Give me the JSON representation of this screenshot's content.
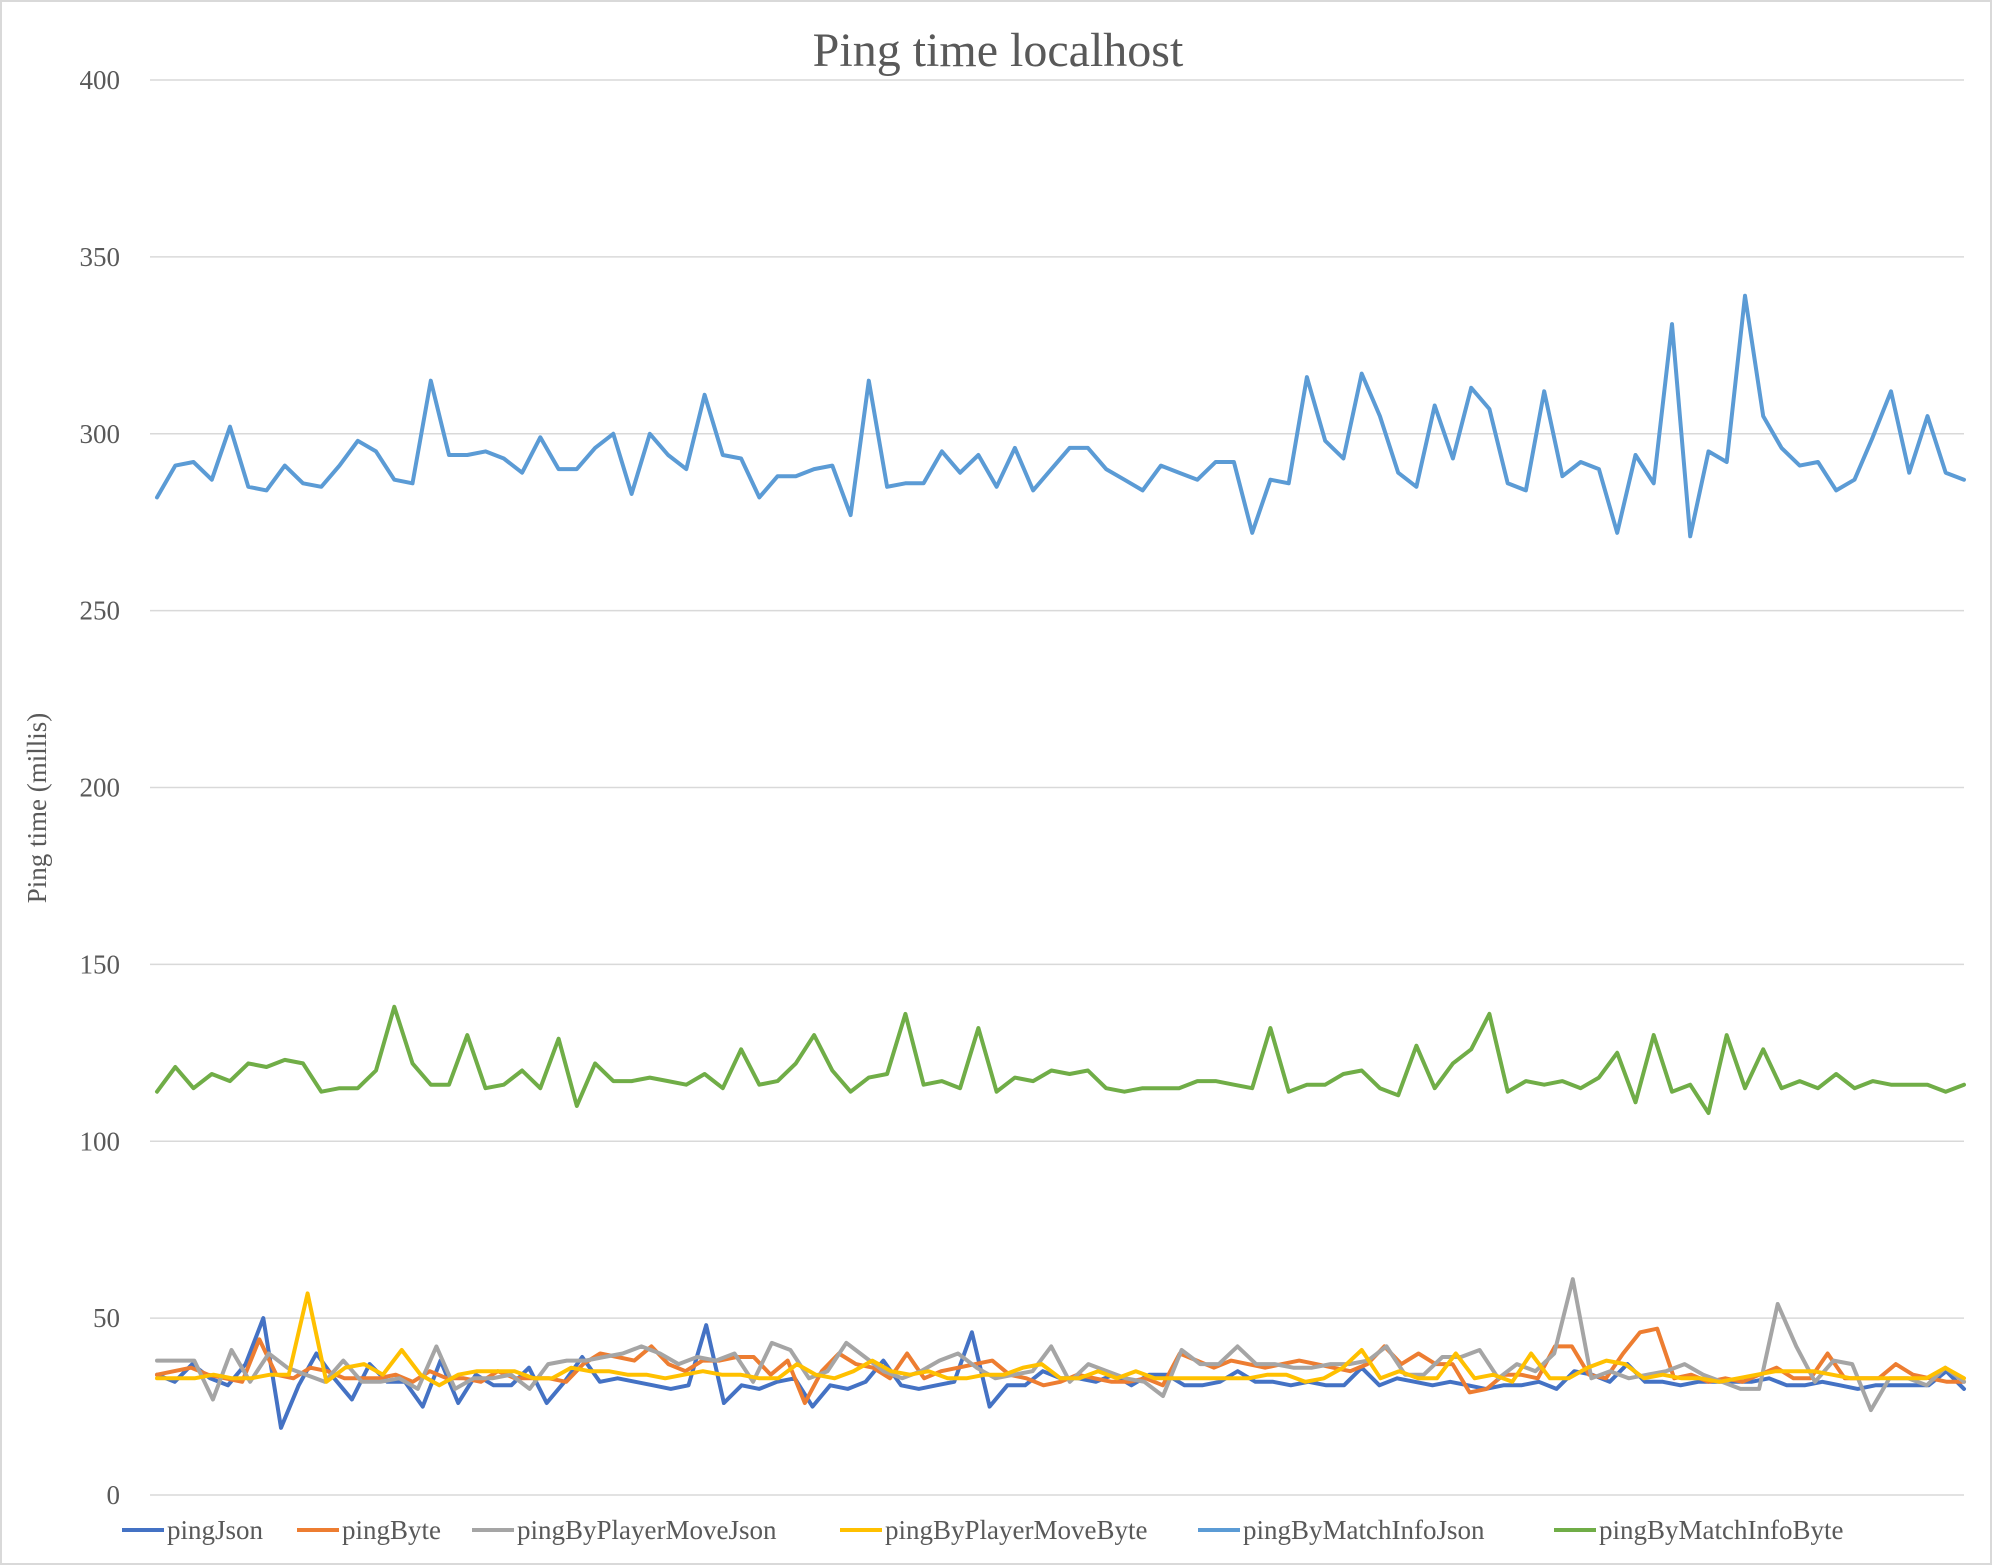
{
  "chart_data": {
    "type": "line",
    "title": "Ping time localhost",
    "xlabel": "",
    "ylabel": "Ping time (millis)",
    "ylim": [
      0,
      400
    ],
    "yticks": [
      0,
      50,
      100,
      150,
      200,
      250,
      300,
      350,
      400
    ],
    "grid": true,
    "legend_position": "bottom",
    "series": [
      {
        "name": "pingJson",
        "color": "#4472c4",
        "values": [
          34,
          32,
          37,
          33,
          31,
          37,
          50,
          19,
          31,
          40,
          33,
          27,
          37,
          32,
          32,
          25,
          38,
          26,
          34,
          31,
          31,
          36,
          26,
          32,
          39,
          32,
          33,
          32,
          31,
          30,
          31,
          48,
          26,
          31,
          30,
          32,
          33,
          25,
          31,
          30,
          32,
          38,
          31,
          30,
          31,
          32,
          46,
          25,
          31,
          31,
          35,
          33,
          33,
          32,
          34,
          31,
          34,
          34,
          31,
          31,
          32,
          35,
          32,
          32,
          31,
          32,
          31,
          31,
          36,
          31,
          33,
          32,
          31,
          32,
          31,
          30,
          31,
          31,
          32,
          30,
          35,
          34,
          32,
          37,
          32,
          32,
          31,
          32,
          32,
          32,
          32,
          33,
          31,
          31,
          32,
          31,
          30,
          31,
          31,
          31,
          31,
          35,
          30
        ]
      },
      {
        "name": "pingByte",
        "color": "#ed7d31",
        "values": [
          34,
          35,
          36,
          34,
          33,
          32,
          44,
          34,
          33,
          36,
          35,
          33,
          33,
          33,
          34,
          32,
          35,
          33,
          33,
          32,
          35,
          33,
          33,
          33,
          32,
          37,
          40,
          39,
          38,
          42,
          37,
          35,
          38,
          38,
          39,
          39,
          34,
          38,
          26,
          35,
          40,
          37,
          36,
          33,
          40,
          33,
          35,
          36,
          37,
          38,
          34,
          33,
          31,
          32,
          34,
          33,
          32,
          32,
          33,
          31,
          40,
          38,
          36,
          38,
          37,
          36,
          37,
          38,
          37,
          36,
          35,
          37,
          42,
          37,
          40,
          37,
          37,
          29,
          30,
          34,
          34,
          33,
          42,
          42,
          34,
          33,
          40,
          46,
          47,
          33,
          34,
          32,
          33,
          32,
          34,
          36,
          33,
          33,
          40,
          33,
          33,
          33,
          37,
          34,
          33,
          32,
          32
        ]
      },
      {
        "name": "pingByPlayerMoveJson",
        "color": "#a5a5a5",
        "values": [
          38,
          38,
          38,
          27,
          41,
          32,
          40,
          36,
          34,
          32,
          38,
          32,
          32,
          33,
          30,
          42,
          30,
          33,
          33,
          34,
          30,
          37,
          38,
          38,
          39,
          40,
          42,
          40,
          37,
          39,
          38,
          40,
          32,
          43,
          41,
          33,
          35,
          43,
          39,
          35,
          33,
          35,
          38,
          40,
          36,
          33,
          34,
          35,
          42,
          32,
          37,
          35,
          33,
          32,
          28,
          41,
          37,
          37,
          42,
          37,
          37,
          36,
          36,
          37,
          37,
          38,
          42,
          34,
          34,
          39,
          39,
          41,
          33,
          37,
          35,
          40,
          61,
          33,
          35,
          33,
          34,
          35,
          37,
          34,
          32,
          30,
          30,
          54,
          42,
          32,
          38,
          37,
          24,
          33,
          33,
          31,
          36,
          32
        ]
      },
      {
        "name": "pingByPlayerMoveByte",
        "color": "#ffc000",
        "values": [
          33,
          33,
          33,
          34,
          33,
          33,
          34,
          34,
          57,
          32,
          36,
          37,
          34,
          41,
          34,
          31,
          34,
          35,
          35,
          35,
          33,
          33,
          36,
          35,
          35,
          34,
          34,
          33,
          34,
          35,
          34,
          34,
          33,
          33,
          37,
          34,
          33,
          35,
          38,
          35,
          34,
          35,
          33,
          33,
          34,
          34,
          36,
          37,
          33,
          33,
          35,
          33,
          35,
          33,
          33,
          33,
          33,
          33,
          33,
          34,
          34,
          32,
          33,
          36,
          41,
          33,
          35,
          33,
          33,
          40,
          33,
          34,
          32,
          40,
          33,
          33,
          36,
          38,
          37,
          33,
          34,
          33,
          33,
          32,
          33,
          34,
          35,
          35,
          35,
          34,
          33,
          33,
          33,
          33,
          33,
          36,
          33
        ]
      },
      {
        "name": "pingByMatchInfoJson",
        "color": "#5b9bd5",
        "values": [
          282,
          291,
          292,
          287,
          302,
          285,
          284,
          291,
          286,
          285,
          291,
          298,
          295,
          287,
          286,
          315,
          294,
          294,
          295,
          293,
          289,
          299,
          290,
          290,
          296,
          300,
          283,
          300,
          294,
          290,
          311,
          294,
          293,
          282,
          288,
          288,
          290,
          291,
          277,
          315,
          285,
          286,
          286,
          295,
          289,
          294,
          285,
          296,
          284,
          290,
          296,
          296,
          290,
          287,
          284,
          291,
          289,
          287,
          292,
          292,
          272,
          287,
          286,
          316,
          298,
          293,
          317,
          305,
          289,
          285,
          308,
          293,
          313,
          307,
          286,
          284,
          312,
          288,
          292,
          290,
          272,
          294,
          286,
          331,
          271,
          295,
          292,
          339,
          305,
          296,
          291,
          292,
          284,
          287,
          299,
          312,
          289,
          305,
          289,
          287
        ]
      },
      {
        "name": "pingByMatchInfoByte",
        "color": "#70ad47",
        "values": [
          114,
          121,
          115,
          119,
          117,
          122,
          121,
          123,
          122,
          114,
          115,
          115,
          120,
          138,
          122,
          116,
          116,
          130,
          115,
          116,
          120,
          115,
          129,
          110,
          122,
          117,
          117,
          118,
          117,
          116,
          119,
          115,
          126,
          116,
          117,
          122,
          130,
          120,
          114,
          118,
          119,
          136,
          116,
          117,
          115,
          132,
          114,
          118,
          117,
          120,
          119,
          120,
          115,
          114,
          115,
          115,
          115,
          117,
          117,
          116,
          115,
          132,
          114,
          116,
          116,
          119,
          120,
          115,
          113,
          127,
          115,
          122,
          126,
          136,
          114,
          117,
          116,
          117,
          115,
          118,
          125,
          111,
          130,
          114,
          116,
          108,
          130,
          115,
          126,
          115,
          117,
          115,
          119,
          115,
          117,
          116,
          116,
          116,
          114,
          116
        ]
      }
    ]
  }
}
